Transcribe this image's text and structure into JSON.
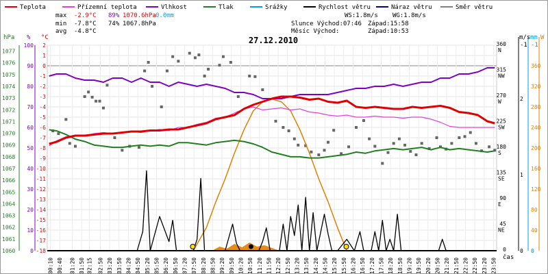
{
  "chart_data": {
    "type": "line",
    "title": "27.12.2010",
    "legend": [
      {
        "name": "Teplota",
        "color": "#e00000"
      },
      {
        "name": "Přízemní teplota",
        "color": "#e040e0"
      },
      {
        "name": "Vlhkost",
        "color": "#8000c0"
      },
      {
        "name": "Tlak",
        "color": "#208020"
      },
      {
        "name": "Srážky",
        "color": "#00a0e0"
      },
      {
        "name": "Rychlost větru",
        "color": "#000000"
      },
      {
        "name": "Náraz větru",
        "color": "#000080"
      },
      {
        "name": "Směr větru",
        "color": "#808080"
      }
    ],
    "stats": {
      "max_label": "max",
      "min_label": "min",
      "avg_label": "avg",
      "max_temp": "-2.9°C",
      "max_hum": "89%",
      "max_press": "1070.6hPa",
      "max_rain": "0.0mm",
      "min_temp": "-7.8°C",
      "min_hum": "74%",
      "min_press": "1067.8hPa",
      "avg_temp": "-4.8°C",
      "ws": "WS:1.8m/s",
      "wg": "WG:1.8m/s",
      "sun": "Slunce Východ:07:46",
      "sun_set": "Západ:15:58",
      "moon": "Měsíc  Východ:",
      "moon_set": "Západ:10:53"
    },
    "axes": {
      "hpa_unit": "hPa",
      "pct_unit": "%",
      "c_unit": "°C",
      "ms_unit": "m/s",
      "mm_unit": "mm",
      "w_unit": "W",
      "time_unit": "čas",
      "hpa_ticks": [
        "1077",
        "1076",
        "1075",
        "1074",
        "1073",
        "1072",
        "1071",
        "1070",
        "1069",
        "1068",
        "1067",
        "1066",
        "1065",
        "1064",
        "1063",
        "1062",
        "1061",
        "1060"
      ],
      "pct_ticks": [
        "100",
        "90",
        "80",
        "70",
        "60",
        "50",
        "40",
        "30",
        "20",
        "10",
        "0"
      ],
      "c_ticks": [
        "2",
        "1",
        "0",
        "-1",
        "-2",
        "-3",
        "-4",
        "-5",
        "-6",
        "-7",
        "-8",
        "-9",
        "-10",
        "-11",
        "-12",
        "-13",
        "-14",
        "-15",
        "-16",
        "-17",
        "-18"
      ],
      "dir_ticks": [
        {
          "deg": "360",
          "name": "N"
        },
        {
          "deg": "315",
          "name": "NW"
        },
        {
          "deg": "270",
          "name": "W"
        },
        {
          "deg": "225",
          "name": "SW"
        },
        {
          "deg": "180",
          "name": "S"
        },
        {
          "deg": "135",
          "name": "SE"
        },
        {
          "deg": "90",
          "name": "E"
        },
        {
          "deg": "45",
          "name": "NE"
        },
        {
          "deg": "0",
          "name": ""
        }
      ],
      "ms_ticks": [
        "2",
        "1",
        "0"
      ],
      "ms_top": "-1",
      "mm_top": "-1",
      "w_ticks": [
        "360",
        "320",
        "280",
        "240",
        "200",
        "160",
        "120",
        "80",
        "40",
        "0"
      ],
      "time_ticks": [
        "00:10",
        "00:40",
        "01:20",
        "01:50",
        "02:15",
        "02:50",
        "03:20",
        "03:50",
        "04:20",
        "04:50",
        "05:20",
        "05:50",
        "06:20",
        "06:50",
        "07:20",
        "07:50",
        "08:20",
        "08:50",
        "09:20",
        "09:50",
        "10:20",
        "10:50",
        "11:20",
        "11:50",
        "12:20",
        "12:50",
        "13:20",
        "13:50",
        "14:20",
        "14:50",
        "15:20",
        "15:50",
        "16:20",
        "16:50",
        "17:20",
        "17:50",
        "18:20",
        "18:50",
        "19:20",
        "19:50",
        "20:20",
        "20:50",
        "21:20",
        "21:50",
        "22:20",
        "22:50",
        "23:20",
        "23:50"
      ]
    },
    "ylim_temp": [
      -18,
      2
    ],
    "ylim_hum": [
      0,
      100
    ],
    "ylim_press": [
      1060,
      1077.5
    ],
    "ylim_wind": [
      0,
      2.7
    ],
    "ylim_dir": [
      0,
      360
    ],
    "ylim_rad": [
      0,
      400
    ],
    "x_hours": [
      0,
      24
    ],
    "temperature": {
      "x": [
        0.1,
        0.5,
        1.0,
        1.5,
        2.0,
        2.5,
        3.0,
        3.5,
        4.0,
        4.5,
        5.0,
        5.5,
        6.0,
        6.5,
        7.0,
        7.5,
        8.0,
        8.5,
        9.0,
        9.5,
        10.0,
        10.5,
        11.0,
        11.5,
        12.0,
        12.5,
        13.0,
        13.5,
        14.0,
        14.5,
        15.0,
        15.5,
        16.0,
        16.5,
        17.0,
        17.5,
        18.0,
        18.5,
        19.0,
        19.5,
        20.0,
        20.5,
        21.0,
        21.5,
        22.0,
        22.5,
        23.0,
        23.5,
        23.9
      ],
      "y": [
        -7.6,
        -7.4,
        -7.0,
        -6.8,
        -6.8,
        -6.7,
        -6.6,
        -6.6,
        -6.5,
        -6.4,
        -6.4,
        -6.3,
        -6.3,
        -6.2,
        -6.2,
        -6.0,
        -5.8,
        -5.6,
        -5.2,
        -5.0,
        -4.8,
        -4.2,
        -3.8,
        -3.5,
        -3.2,
        -3.0,
        -3.0,
        -3.1,
        -3.3,
        -3.2,
        -3.5,
        -3.6,
        -3.4,
        -4.0,
        -4.1,
        -4.0,
        -4.1,
        -4.2,
        -4.2,
        -4.0,
        -4.1,
        -4.0,
        -3.9,
        -4.1,
        -4.5,
        -4.6,
        -4.8,
        -5.4,
        -5.6
      ]
    },
    "ground_temp": {
      "x": [
        0.1,
        0.5,
        1.0,
        1.5,
        2.0,
        2.5,
        3.0,
        3.5,
        4.0,
        4.5,
        5.0,
        5.5,
        6.0,
        6.5,
        7.0,
        7.5,
        8.0,
        8.5,
        9.0,
        9.5,
        10.0,
        10.5,
        11.0,
        11.5,
        12.0,
        12.5,
        13.0,
        13.5,
        14.0,
        14.5,
        15.0,
        15.5,
        16.0,
        16.5,
        17.0,
        17.5,
        18.0,
        18.5,
        19.0,
        19.5,
        20.0,
        20.5,
        21.0,
        21.5,
        22.0,
        22.5,
        23.0,
        23.5,
        23.9
      ],
      "y": [
        -7.8,
        -7.3,
        -6.9,
        -6.8,
        -6.8,
        -6.6,
        -6.5,
        -6.6,
        -6.5,
        -6.4,
        -6.5,
        -6.3,
        -6.2,
        -6.3,
        -6.0,
        -6.0,
        -5.7,
        -5.5,
        -5.1,
        -5.0,
        -4.6,
        -4.2,
        -4.0,
        -4.3,
        -4.2,
        -4.1,
        -4.3,
        -4.2,
        -4.5,
        -4.6,
        -4.8,
        -4.9,
        -4.8,
        -5.0,
        -5.0,
        -4.9,
        -5.0,
        -5.0,
        -5.1,
        -5.0,
        -5.0,
        -5.2,
        -5.5,
        -5.9,
        -6.0,
        -6.0,
        -6.0,
        -6.0,
        -6.0
      ]
    },
    "humidity": {
      "x": [
        0.1,
        0.5,
        1.0,
        1.5,
        2.0,
        2.5,
        3.0,
        3.5,
        4.0,
        4.5,
        5.0,
        5.5,
        6.0,
        6.5,
        7.0,
        7.5,
        8.0,
        8.5,
        9.0,
        9.5,
        10.0,
        10.5,
        11.0,
        11.5,
        12.0,
        12.5,
        13.0,
        13.5,
        14.0,
        14.5,
        15.0,
        15.5,
        16.0,
        16.5,
        17.0,
        17.5,
        18.0,
        18.5,
        19.0,
        19.5,
        20.0,
        20.5,
        21.0,
        21.5,
        22.0,
        22.5,
        23.0,
        23.5,
        23.9
      ],
      "y": [
        85,
        86,
        86,
        84,
        83,
        83,
        82,
        84,
        84,
        82,
        84,
        82,
        82,
        80,
        82,
        81,
        80,
        81,
        80,
        79,
        77,
        77,
        76,
        74,
        74,
        74,
        75,
        76,
        76,
        76,
        76,
        77,
        78,
        79,
        79,
        80,
        80,
        81,
        80,
        81,
        82,
        82,
        84,
        84,
        86,
        86,
        87,
        89,
        89
      ]
    },
    "pressure": {
      "x": [
        0.1,
        0.5,
        1.0,
        1.5,
        2.0,
        2.5,
        3.0,
        3.5,
        4.0,
        4.5,
        5.0,
        5.5,
        6.0,
        6.5,
        7.0,
        7.5,
        8.0,
        8.5,
        9.0,
        9.5,
        10.0,
        10.5,
        11.0,
        11.5,
        12.0,
        12.5,
        13.0,
        13.5,
        14.0,
        14.5,
        15.0,
        15.5,
        16.0,
        16.5,
        17.0,
        17.5,
        18.0,
        18.5,
        19.0,
        19.5,
        20.0,
        20.5,
        21.0,
        21.5,
        22.0,
        22.5,
        23.0,
        23.5,
        23.9
      ],
      "y": [
        1070.3,
        1070.2,
        1069.9,
        1069.5,
        1069.3,
        1069.0,
        1068.9,
        1068.8,
        1068.8,
        1068.9,
        1069.0,
        1068.9,
        1069.0,
        1068.9,
        1069.2,
        1069.2,
        1069.1,
        1069.0,
        1069.2,
        1069.3,
        1069.4,
        1069.3,
        1069.1,
        1068.8,
        1068.4,
        1068.2,
        1068.0,
        1068.0,
        1067.9,
        1067.9,
        1068.0,
        1068.1,
        1068.2,
        1068.4,
        1068.3,
        1068.5,
        1068.6,
        1068.7,
        1068.6,
        1068.7,
        1068.8,
        1068.6,
        1068.8,
        1068.6,
        1068.7,
        1068.6,
        1068.5,
        1068.4,
        1068.5
      ]
    },
    "wind_speed": {
      "x": [
        0.0,
        4.8,
        5.1,
        5.3,
        5.5,
        6.0,
        6.5,
        6.7,
        6.9,
        7.4,
        7.8,
        8.0,
        8.2,
        8.4,
        9.5,
        9.9,
        10.1,
        10.3,
        11.3,
        11.5,
        11.7,
        11.9,
        12.4,
        12.6,
        12.8,
        13.0,
        13.2,
        13.4,
        13.6,
        13.8,
        14.0,
        14.2,
        14.4,
        14.8,
        15.0,
        15.2,
        15.5,
        16.0,
        16.4,
        16.7,
        16.9,
        17.3,
        17.5,
        17.7,
        17.9,
        18.1,
        18.3,
        18.5,
        18.7,
        18.9,
        19.0,
        20.9,
        21.1,
        21.3,
        24.0
      ],
      "y": [
        0,
        0,
        0.25,
        1.05,
        0,
        0.45,
        0.12,
        0.4,
        0,
        0,
        0,
        0.15,
        0.95,
        0,
        0,
        0.35,
        0.1,
        0,
        0,
        0.12,
        0.3,
        0,
        0,
        0.35,
        0,
        0.45,
        0.2,
        0.6,
        0,
        0.7,
        0,
        0.5,
        0,
        0.48,
        0.22,
        0,
        0,
        0.15,
        0,
        0.25,
        0,
        0,
        0.25,
        0,
        0.4,
        0,
        0.15,
        0,
        0.48,
        0,
        0,
        0,
        0.15,
        0,
        0
      ]
    },
    "wind_dir_points": [
      [
        0.3,
        210
      ],
      [
        0.6,
        205
      ],
      [
        1.0,
        230
      ],
      [
        1.2,
        188
      ],
      [
        1.5,
        183
      ],
      [
        2.0,
        270
      ],
      [
        2.2,
        278
      ],
      [
        2.4,
        269
      ],
      [
        2.6,
        262
      ],
      [
        2.8,
        262
      ],
      [
        3.0,
        250
      ],
      [
        3.2,
        290
      ],
      [
        3.6,
        198
      ],
      [
        4.0,
        176
      ],
      [
        4.4,
        183
      ],
      [
        4.9,
        181
      ],
      [
        5.2,
        315
      ],
      [
        5.4,
        330
      ],
      [
        5.6,
        288
      ],
      [
        6.1,
        252
      ],
      [
        6.4,
        315
      ],
      [
        6.7,
        340
      ],
      [
        7.0,
        332
      ],
      [
        7.6,
        346
      ],
      [
        7.9,
        338
      ],
      [
        8.1,
        343
      ],
      [
        8.4,
        306
      ],
      [
        8.6,
        318
      ],
      [
        9.2,
        325
      ],
      [
        9.4,
        340
      ],
      [
        9.8,
        330
      ],
      [
        10.2,
        270
      ],
      [
        10.8,
        306
      ],
      [
        11.1,
        305
      ],
      [
        11.5,
        282
      ],
      [
        12.2,
        227
      ],
      [
        12.6,
        216
      ],
      [
        12.9,
        210
      ],
      [
        13.2,
        196
      ],
      [
        13.4,
        185
      ],
      [
        13.8,
        184
      ],
      [
        14.1,
        173
      ],
      [
        14.5,
        168
      ],
      [
        14.8,
        176
      ],
      [
        15.0,
        190
      ],
      [
        15.3,
        211
      ],
      [
        15.7,
        170
      ],
      [
        16.1,
        182
      ],
      [
        16.5,
        216
      ],
      [
        16.9,
        228
      ],
      [
        17.2,
        196
      ],
      [
        17.5,
        183
      ],
      [
        17.9,
        153
      ],
      [
        18.2,
        172
      ],
      [
        18.5,
        188
      ],
      [
        18.8,
        196
      ],
      [
        19.1,
        185
      ],
      [
        19.4,
        174
      ],
      [
        19.7,
        168
      ],
      [
        20.0,
        188
      ],
      [
        20.4,
        179
      ],
      [
        20.8,
        198
      ],
      [
        21.0,
        182
      ],
      [
        21.3,
        178
      ],
      [
        21.6,
        188
      ],
      [
        22.0,
        198
      ],
      [
        22.3,
        200
      ],
      [
        22.6,
        207
      ],
      [
        22.9,
        188
      ],
      [
        23.2,
        175
      ],
      [
        23.6,
        182
      ],
      [
        23.9,
        176
      ]
    ],
    "radiation": {
      "x": [
        7.8,
        8.5,
        9.0,
        9.5,
        10.0,
        10.5,
        11.0,
        11.5,
        12.0,
        12.5,
        13.0,
        13.5,
        14.0,
        14.5,
        15.0,
        15.5,
        16.0
      ],
      "y": [
        0,
        45,
        95,
        140,
        190,
        235,
        272,
        290,
        295,
        290,
        272,
        235,
        190,
        140,
        95,
        45,
        0
      ]
    },
    "rain_hump": {
      "x": [
        8.8,
        9.2,
        9.6,
        10.0,
        10.4,
        10.8,
        11.2,
        11.6,
        12.0,
        12.4
      ],
      "y": [
        0,
        6,
        3,
        10,
        5,
        12,
        6,
        8,
        4,
        0
      ]
    },
    "markers": [
      {
        "name": "sunrise",
        "time": 7.77
      },
      {
        "name": "sunset",
        "time": 15.97
      },
      {
        "name": "moonset",
        "time": 10.88
      }
    ]
  }
}
